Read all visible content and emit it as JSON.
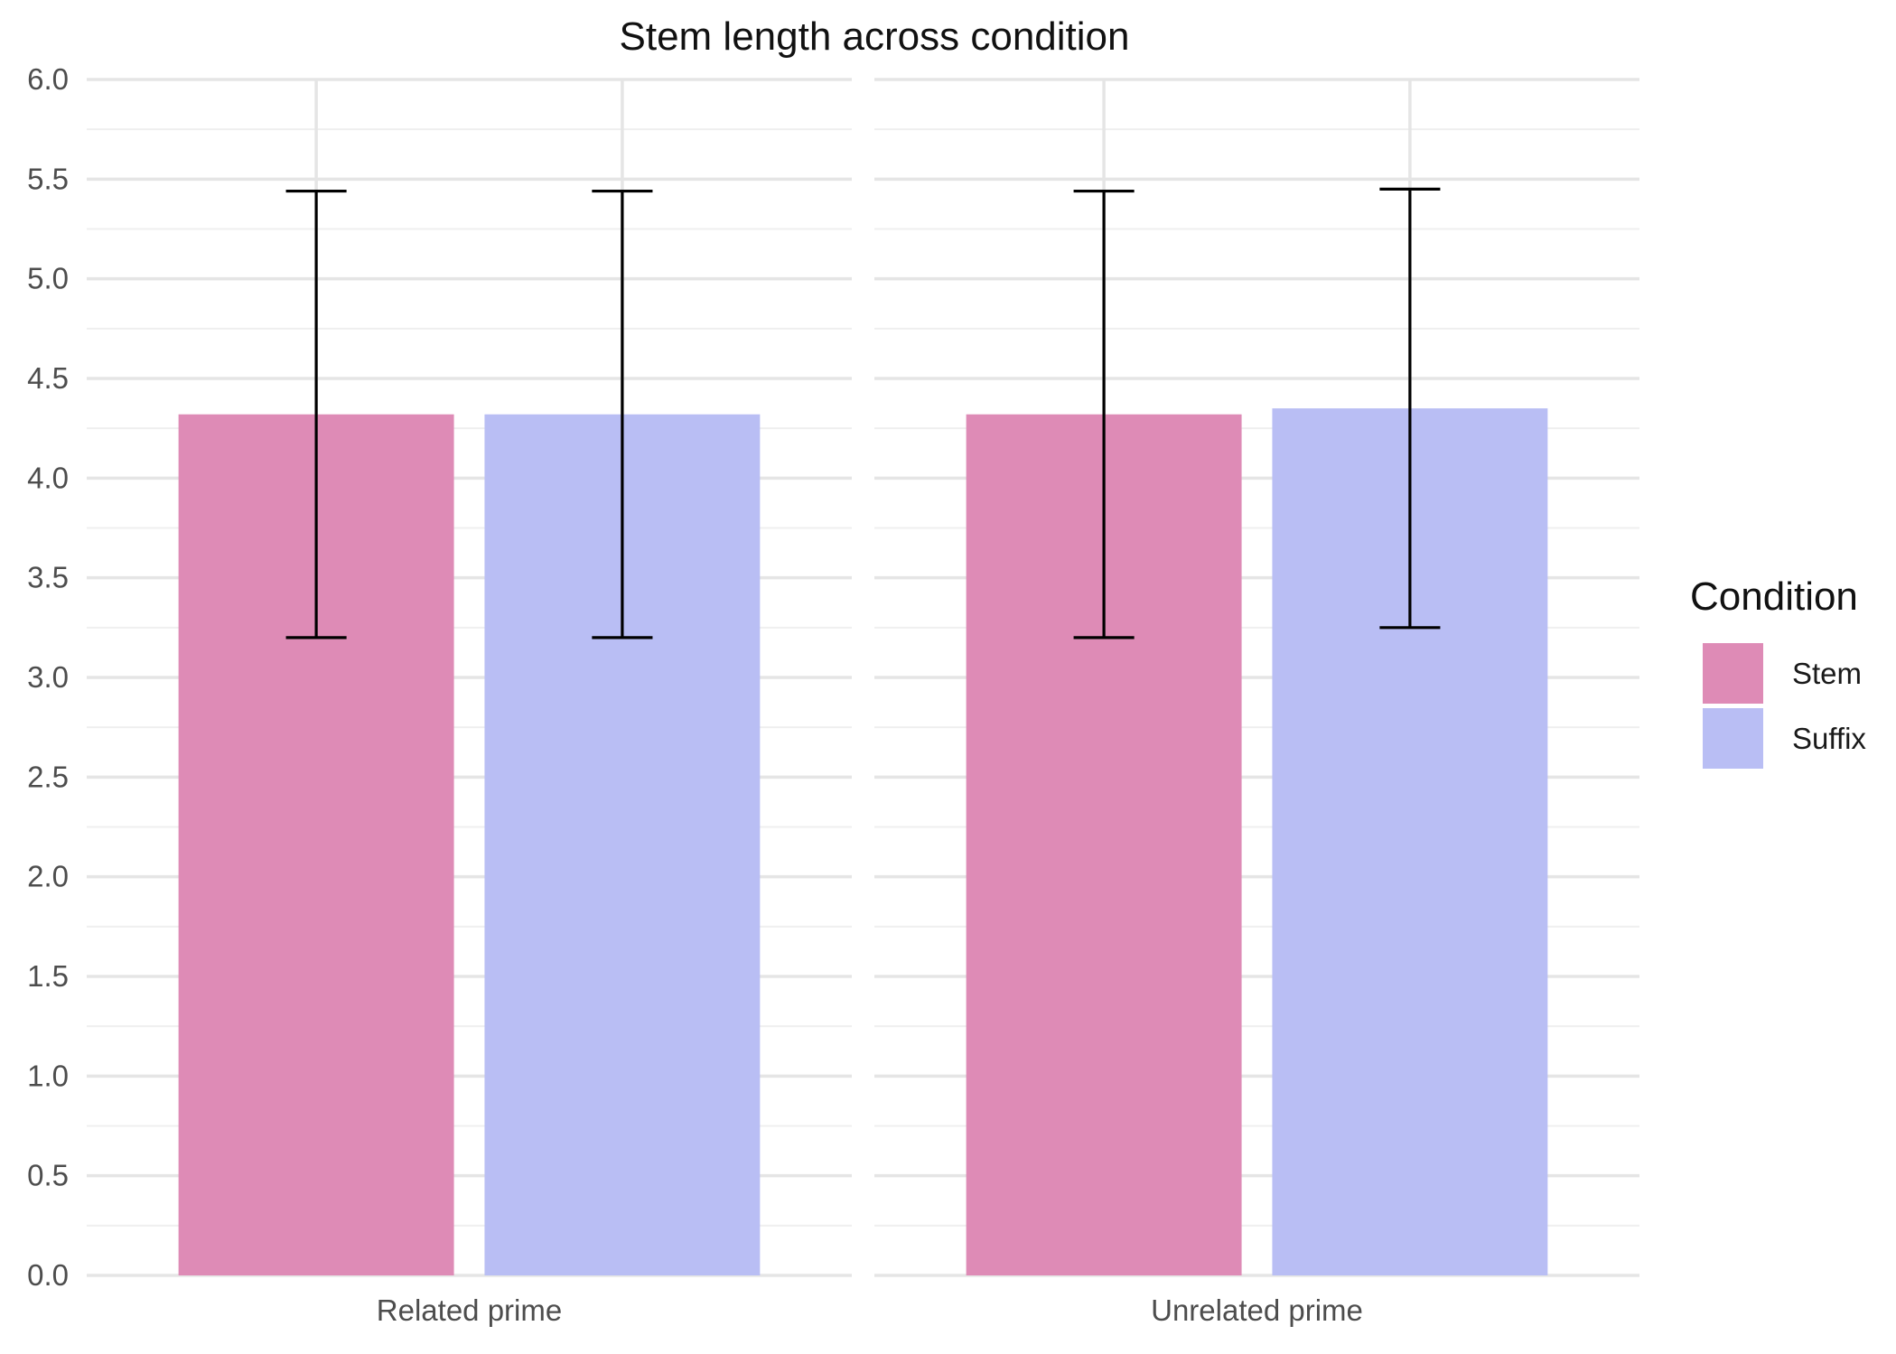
{
  "chart_data": {
    "type": "bar",
    "title": "Stem length across condition",
    "xlabel": "",
    "ylabel": "",
    "ylim": [
      0,
      6
    ],
    "yticks": [
      "0.0",
      "0.5",
      "1.0",
      "1.5",
      "2.0",
      "2.5",
      "3.0",
      "3.5",
      "4.0",
      "4.5",
      "5.0",
      "5.5",
      "6.0"
    ],
    "facets": [
      "Related prime",
      "Unrelated prime"
    ],
    "legend": {
      "title": "Condition",
      "placement": "right",
      "entries": [
        {
          "name": "Stem",
          "color": "#DE8BB6"
        },
        {
          "name": "Suffix",
          "color": "#B9BEF4"
        }
      ]
    },
    "series": [
      {
        "name": "Stem",
        "color": "#DE8BB6",
        "values": [
          4.32,
          4.32
        ],
        "error_low": [
          3.2,
          3.2
        ],
        "error_high": [
          5.44,
          5.44
        ]
      },
      {
        "name": "Suffix",
        "color": "#B9BEF4",
        "values": [
          4.32,
          4.35
        ],
        "error_low": [
          3.2,
          3.25
        ],
        "error_high": [
          5.44,
          5.45
        ]
      }
    ],
    "grid": true
  },
  "colors": {
    "grid_major": "#E5E5E5",
    "grid_minor": "#EFEFEF",
    "errorbar": "#000000"
  }
}
